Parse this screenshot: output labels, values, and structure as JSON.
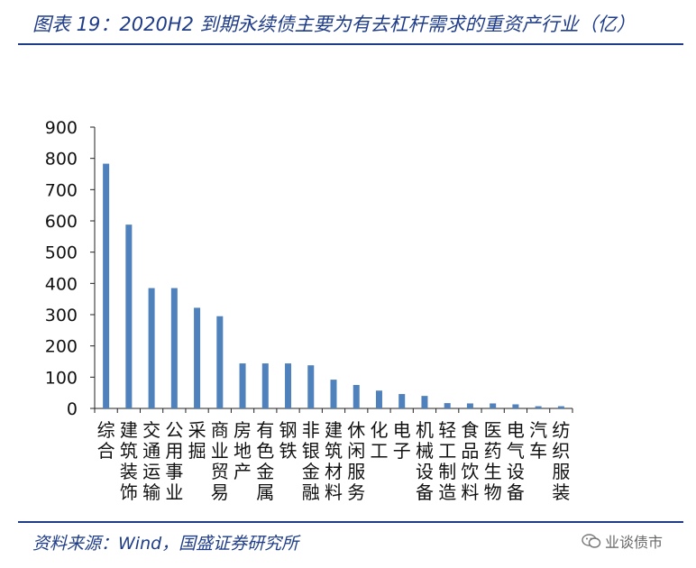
{
  "header": {
    "title": "图表 19：2020H2 到期永续债主要为有去杠杆需求的重资产行业（亿）"
  },
  "footer": {
    "source": "资料来源：Wind，国盛证券研究所",
    "watermark": "业谈债市"
  },
  "chart_data": {
    "type": "bar",
    "title": "",
    "xlabel": "",
    "ylabel": "",
    "ylim": [
      0,
      900
    ],
    "yticks": [
      0,
      100,
      200,
      300,
      400,
      500,
      600,
      700,
      800,
      900
    ],
    "grid": false,
    "legend": "none",
    "bar_color": "#4f81bd",
    "categories": [
      "综合",
      "建筑装饰",
      "交通运输",
      "公用事业",
      "采掘",
      "商业贸易",
      "房地产",
      "有色金属",
      "钢铁",
      "非银金融",
      "建筑材料",
      "休闲服务",
      "化工",
      "电子",
      "机械设备",
      "轻工制造",
      "食品饮料",
      "医药生物",
      "电气设备",
      "汽车",
      "纺织服装"
    ],
    "values": [
      783,
      588,
      385,
      385,
      322,
      295,
      144,
      144,
      144,
      138,
      92,
      75,
      57,
      46,
      40,
      17,
      16,
      16,
      13,
      7,
      7
    ]
  }
}
